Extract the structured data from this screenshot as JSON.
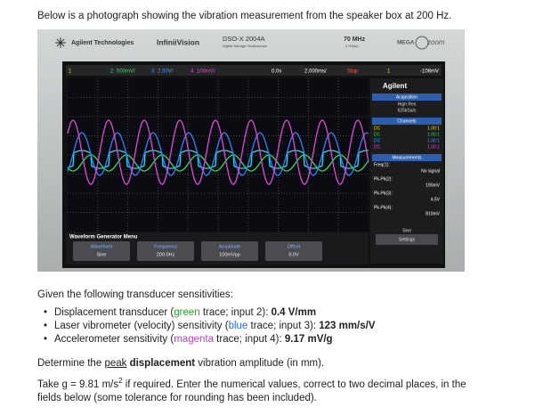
{
  "intro": "Below is a photograph showing the vibration measurement from the speaker box at 200 Hz.",
  "photo": {
    "brand": "Agilent Technologies",
    "series": "InfiniiVision",
    "model": "DSO-X 2004A",
    "model_sub": "Digital Storage Oscilloscope",
    "bandwidth": "70 MHz",
    "rate": "2 GSa/s",
    "mega": "MEGA",
    "zoom": "zoom",
    "status": [
      "1",
      "2",
      "500mV/",
      "3",
      "2.00V/",
      "4",
      "100mV/",
      "0.0s",
      "2.000ms/",
      "Stop",
      "1",
      "-108mV"
    ],
    "panel": {
      "logo": "Agilent",
      "acquisition": "Acquisition",
      "acq_mode": "High Res",
      "acq_rate": "625kSa/s",
      "channels": "Channels",
      "channel_rows": [
        [
          "DC",
          "1.00:1"
        ],
        [
          "DC",
          "1.00:1"
        ],
        [
          "DC",
          "1.00:1"
        ],
        [
          "DC",
          "1.00:1"
        ]
      ],
      "measurements": "Measurements",
      "meas_rows": [
        [
          "Freq(1):",
          "No signal"
        ],
        [
          "Pk-Pk(2):",
          "190mV"
        ],
        [
          "Pk-Pk(3):",
          "4.5V"
        ],
        [
          "Pk-Pk(4):",
          "810mV"
        ]
      ],
      "sine": "Sine",
      "settings": "Settings"
    },
    "menu": {
      "title": "Waveform Generator Menu",
      "items": [
        {
          "label": "Waveform",
          "value": "Sine"
        },
        {
          "label": "Frequency",
          "value": "200.0Hz"
        },
        {
          "label": "Amplitude",
          "value": "100mVpp"
        },
        {
          "label": "Offset",
          "value": "0.0V"
        }
      ]
    }
  },
  "given": "Given the following transducer sensitivities:",
  "sensitivities": [
    [
      "Displacement transducer (",
      "green",
      " trace; input 2): ",
      "0.4 V/mm"
    ],
    [
      "Laser vibrometer (velocity) sensitivity (",
      "blue",
      " trace; input 3): ",
      "123 mm/s/V"
    ],
    [
      "Accelerometer sensitivity (",
      "magenta",
      " trace; input 4): ",
      "9.17 mV/g"
    ]
  ],
  "task": [
    "Determine the ",
    "peak",
    " displacement",
    " vibration amplitude (in mm)."
  ],
  "note": [
    "Take g = 9.81 m/s",
    "2",
    " if required. Enter the numerical values, correct to two decimal places, in the fields below (some tolerance for rounding has been included)."
  ]
}
